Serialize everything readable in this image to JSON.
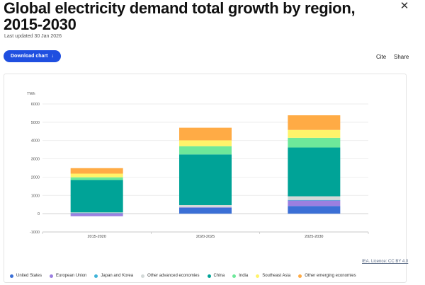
{
  "header": {
    "title": "Global electricity demand total growth by region, 2015-2030",
    "updated": "Last updated 30 Jan 2026",
    "download_label": "Download chart",
    "download_icon": "arrow-down-icon",
    "cite_label": "Cite",
    "share_label": "Share",
    "close_icon": "close-icon"
  },
  "footer": {
    "license": "IEA. Licence: CC BY 4.0"
  },
  "chart_data": {
    "type": "bar",
    "stacked": true,
    "unit_label": "TWh",
    "ylim": [
      -1000,
      6000
    ],
    "yticks": [
      -1000,
      0,
      1000,
      2000,
      3000,
      4000,
      5000,
      6000
    ],
    "grid": true,
    "legend_position": "bottom",
    "categories": [
      "2015-2020",
      "2020-2025",
      "2025-2030"
    ],
    "series": [
      {
        "name": "United States",
        "color": "#3b6fd6",
        "values": [
          30,
          330,
          420
        ]
      },
      {
        "name": "European Union",
        "color": "#9b7fe0",
        "values": [
          -140,
          20,
          300
        ]
      },
      {
        "name": "Japan and Korea",
        "color": "#3fb3d8",
        "values": [
          0,
          0,
          30
        ]
      },
      {
        "name": "Other advanced economies",
        "color": "#d3d9d8",
        "values": [
          40,
          120,
          200
        ]
      },
      {
        "name": "China",
        "color": "#00a397",
        "values": [
          1770,
          2770,
          2670
        ]
      },
      {
        "name": "India",
        "color": "#6ee89a",
        "values": [
          150,
          450,
          530
        ]
      },
      {
        "name": "Southeast Asia",
        "color": "#fff36a",
        "values": [
          200,
          320,
          430
        ]
      },
      {
        "name": "Other emerging economies",
        "color": "#ffab45",
        "values": [
          300,
          690,
          800
        ]
      }
    ]
  }
}
